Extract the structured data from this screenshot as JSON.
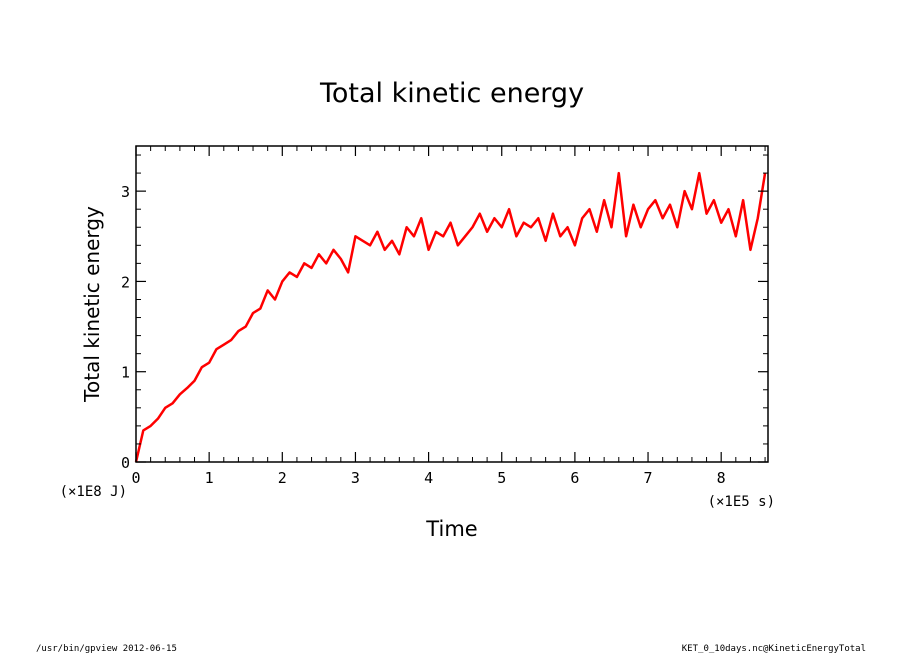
{
  "colors": {
    "series": "#ff0000",
    "axes": "#000000",
    "background": "#ffffff"
  },
  "footer": {
    "left": "/usr/bin/gpview  2012-06-15",
    "right": "KET_0_10days.nc@KineticEnergyTotal"
  },
  "chart_data": {
    "type": "line",
    "title": "Total kinetic energy",
    "xlabel": "Time",
    "ylabel": "Total kinetic energy",
    "x_unit_label": "(×1E5 s)",
    "y_unit_label": "(×1E8 J)",
    "xlim": [
      0,
      8.64
    ],
    "ylim": [
      0,
      3.5
    ],
    "x_ticks": [
      0,
      1,
      2,
      3,
      4,
      5,
      6,
      7,
      8
    ],
    "y_ticks": [
      0,
      1,
      2,
      3
    ],
    "grid": false,
    "legend": "none",
    "series": [
      {
        "x": [
          0,
          0.1,
          0.2,
          0.3,
          0.4,
          0.5,
          0.6,
          0.7,
          0.8,
          0.9,
          1.0,
          1.1,
          1.2,
          1.3,
          1.4,
          1.5,
          1.6,
          1.7,
          1.8,
          1.9,
          2.0,
          2.1,
          2.2,
          2.3,
          2.4,
          2.5,
          2.6,
          2.7,
          2.8,
          2.9,
          3.0,
          3.1,
          3.2,
          3.3,
          3.4,
          3.5,
          3.6,
          3.7,
          3.8,
          3.9,
          4.0,
          4.1,
          4.2,
          4.3,
          4.4,
          4.5,
          4.6,
          4.7,
          4.8,
          4.9,
          5.0,
          5.1,
          5.2,
          5.3,
          5.4,
          5.5,
          5.6,
          5.7,
          5.8,
          5.9,
          6.0,
          6.1,
          6.2,
          6.3,
          6.4,
          6.5,
          6.6,
          6.7,
          6.8,
          6.9,
          7.0,
          7.1,
          7.2,
          7.3,
          7.4,
          7.5,
          7.6,
          7.7,
          7.8,
          7.9,
          8.0,
          8.1,
          8.2,
          8.3,
          8.4,
          8.5,
          8.6
        ],
        "values": [
          0.0,
          0.35,
          0.4,
          0.48,
          0.6,
          0.65,
          0.75,
          0.82,
          0.9,
          1.05,
          1.1,
          1.25,
          1.3,
          1.35,
          1.45,
          1.5,
          1.65,
          1.7,
          1.9,
          1.8,
          2.0,
          2.1,
          2.05,
          2.2,
          2.15,
          2.3,
          2.2,
          2.35,
          2.25,
          2.1,
          2.5,
          2.45,
          2.4,
          2.55,
          2.35,
          2.45,
          2.3,
          2.6,
          2.5,
          2.7,
          2.35,
          2.55,
          2.5,
          2.65,
          2.4,
          2.5,
          2.6,
          2.75,
          2.55,
          2.7,
          2.6,
          2.8,
          2.5,
          2.65,
          2.6,
          2.7,
          2.45,
          2.75,
          2.5,
          2.6,
          2.4,
          2.7,
          2.8,
          2.55,
          2.9,
          2.6,
          3.2,
          2.5,
          2.85,
          2.6,
          2.8,
          2.9,
          2.7,
          2.85,
          2.6,
          3.0,
          2.8,
          3.2,
          2.75,
          2.9,
          2.65,
          2.8,
          2.5,
          2.9,
          2.35,
          2.7,
          3.2
        ]
      }
    ]
  }
}
